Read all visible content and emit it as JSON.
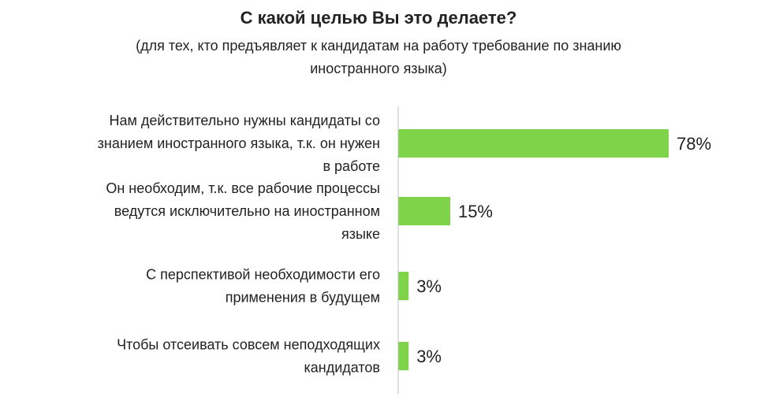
{
  "chart_data": {
    "type": "bar",
    "orientation": "horizontal",
    "title": "С какой целью Вы это делаете?",
    "subtitle": "(для тех, кто предъявляет к кандидатам на работу требование по знанию иностранного языка)",
    "categories": [
      "Нам действительно нужны кандидаты со знанием иностранного языка, т.к. он нужен в работе",
      "Он необходим, т.к. все рабочие процессы ведутся исключительно на иностранном языке",
      "С перспективой необходимости его применения в будущем",
      "Чтобы отсеивать совсем неподходящих кандидатов"
    ],
    "category_lines": [
      [
        "Нам действительно нужны кандидаты со",
        "знанием иностранного языка, т.к. он нужен",
        "в работе"
      ],
      [
        "Он необходим, т.к. все рабочие процессы",
        "ведутся исключительно на иностранном",
        "языке"
      ],
      [
        "С перспективой необходимости его",
        "применения в будущем"
      ],
      [
        "Чтобы отсеивать совсем неподходящих",
        "кандидатов"
      ]
    ],
    "values": [
      78,
      15,
      3,
      3
    ],
    "value_labels": [
      "78%",
      "15%",
      "3%",
      "3%"
    ],
    "unit": "%",
    "xlim": [
      0,
      100
    ],
    "bar_color": "#7ed348",
    "axis_color": "#bfbfbf",
    "grid": false,
    "legend": "none"
  }
}
